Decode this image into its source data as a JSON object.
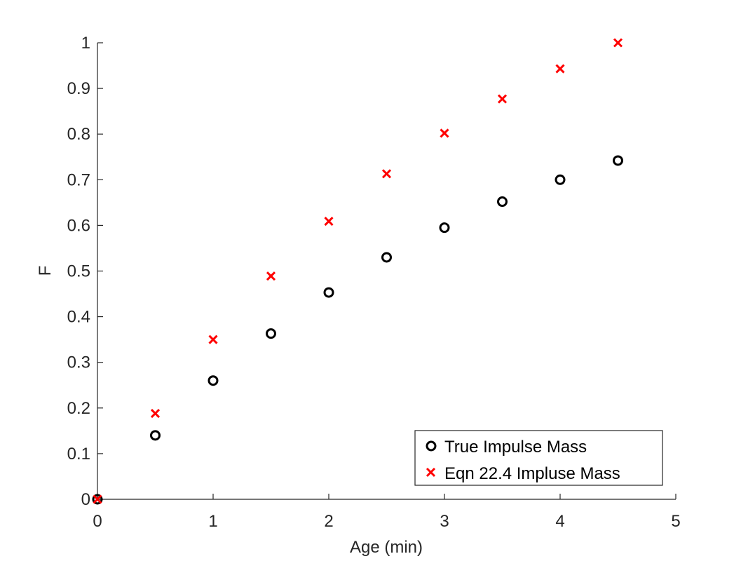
{
  "chart_data": {
    "type": "scatter",
    "title": "",
    "xlabel": "Age (min)",
    "ylabel": "F",
    "xlim": [
      0,
      5
    ],
    "ylim": [
      0,
      1
    ],
    "xticks": [
      0,
      1,
      2,
      3,
      4,
      5
    ],
    "yticks": [
      0,
      0.1,
      0.2,
      0.3,
      0.4,
      0.5,
      0.6,
      0.7,
      0.8,
      0.9,
      1
    ],
    "xtick_labels": [
      "0",
      "1",
      "2",
      "3",
      "4",
      "5"
    ],
    "ytick_labels": [
      "0",
      "0.1",
      "0.2",
      "0.3",
      "0.4",
      "0.5",
      "0.6",
      "0.7",
      "0.8",
      "0.9",
      "1"
    ],
    "grid": false,
    "legend_position": "bottom-right",
    "series": [
      {
        "name": "True Impulse Mass",
        "marker": "circle",
        "color": "#000000",
        "x": [
          0,
          0.5,
          1,
          1.5,
          2,
          2.5,
          3,
          3.5,
          4,
          4.5
        ],
        "y": [
          0,
          0.14,
          0.26,
          0.363,
          0.453,
          0.53,
          0.595,
          0.652,
          0.7,
          0.742
        ]
      },
      {
        "name": "Eqn 22.4 Impluse Mass",
        "marker": "x",
        "color": "#ff0000",
        "x": [
          0,
          0.5,
          1,
          1.5,
          2,
          2.5,
          3,
          3.5,
          4,
          4.5
        ],
        "y": [
          0,
          0.188,
          0.35,
          0.489,
          0.609,
          0.713,
          0.802,
          0.877,
          0.943,
          1.0
        ]
      }
    ]
  }
}
